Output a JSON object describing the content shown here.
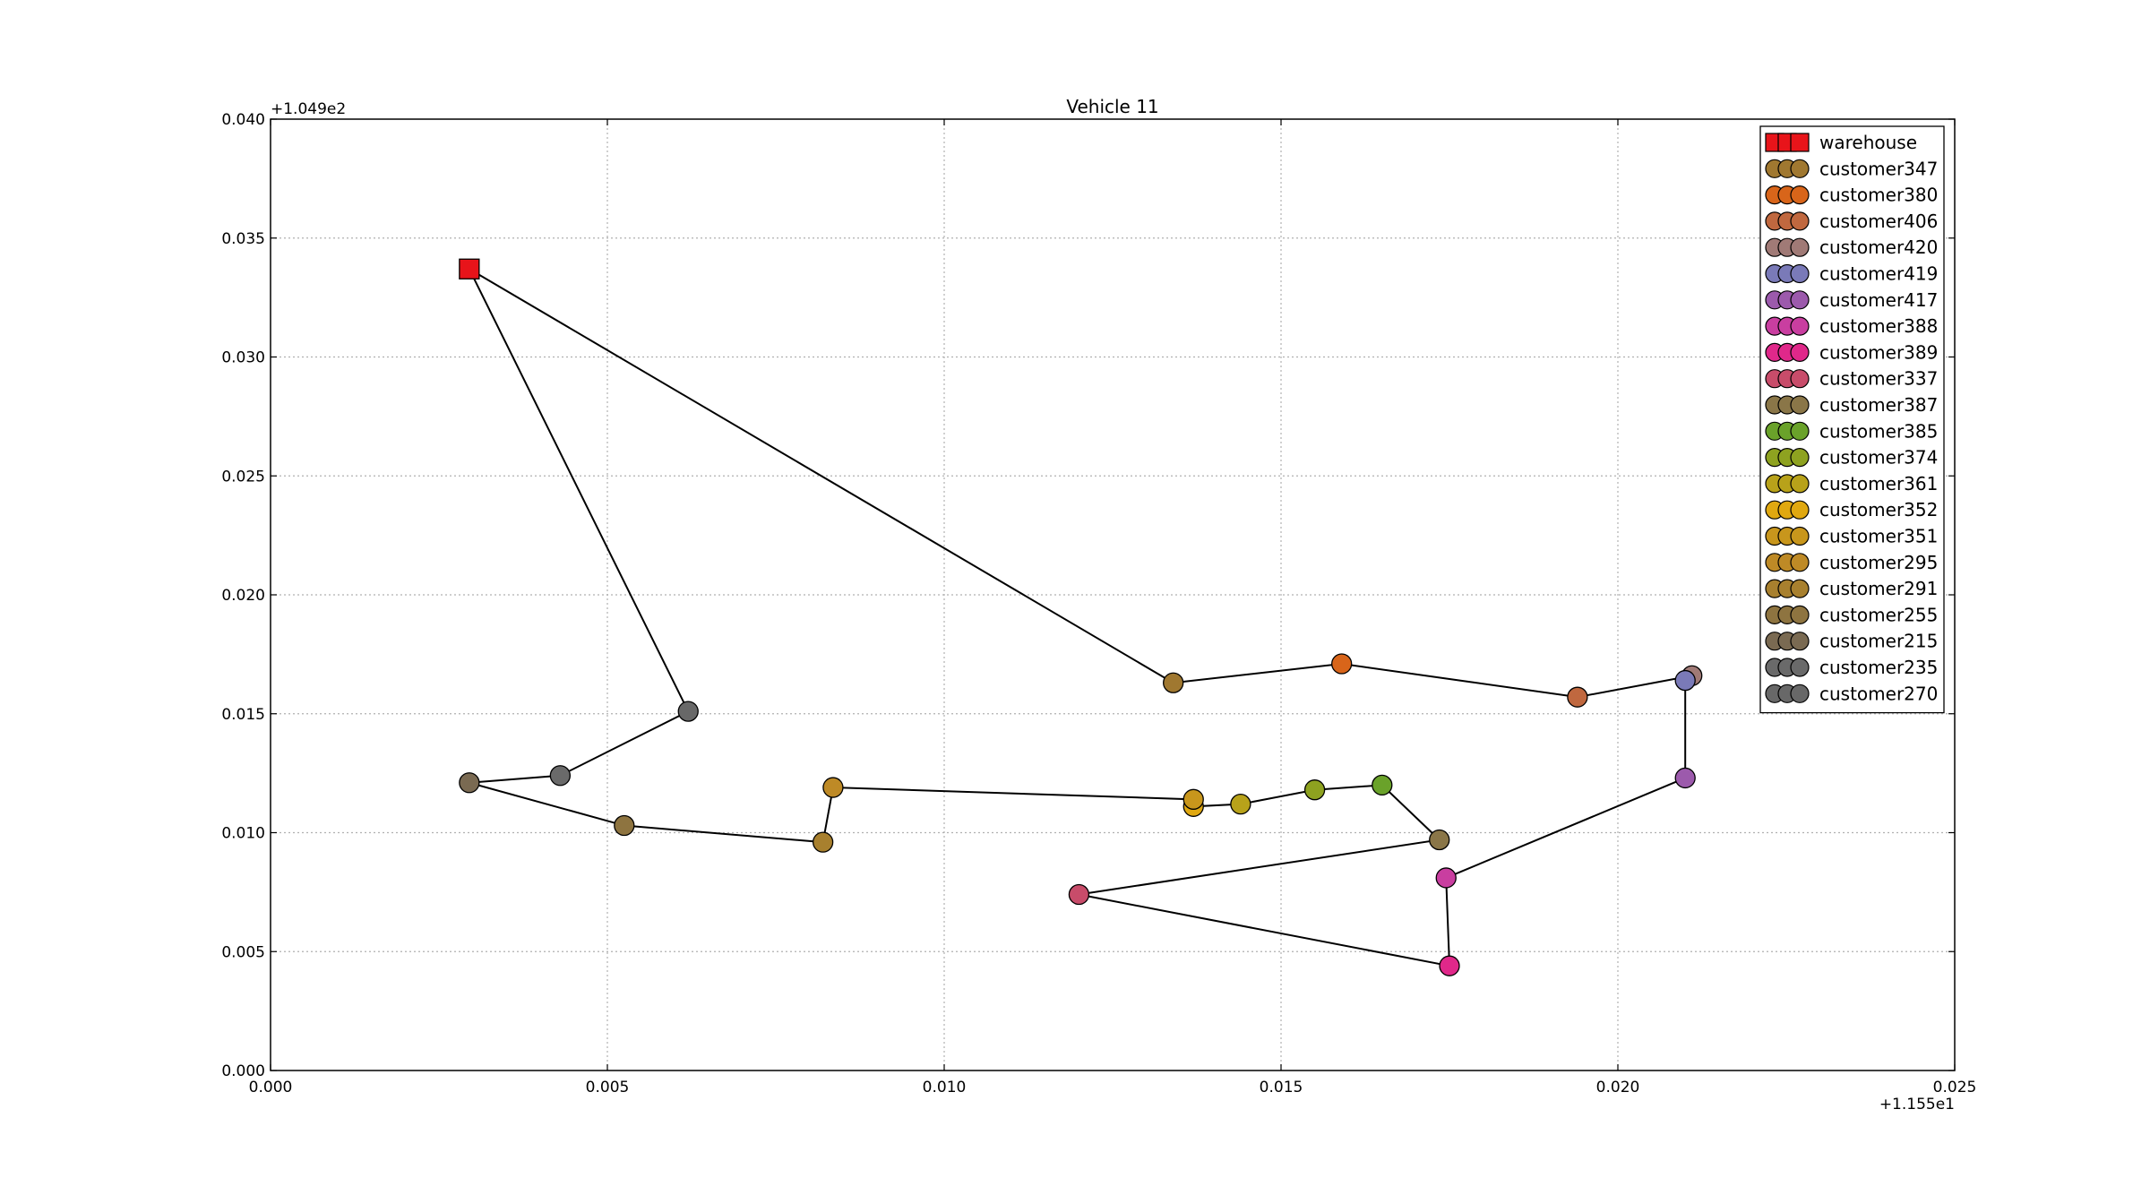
{
  "chart_data": {
    "type": "scatter",
    "title": "Vehicle 11",
    "xlabel": "",
    "ylabel": "",
    "x_offset_label": "+1.155e1",
    "y_offset_label": "+1.049e2",
    "xlim": [
      0.0,
      0.025
    ],
    "ylim": [
      0.0,
      0.04
    ],
    "x_ticks": [
      "0.000",
      "0.005",
      "0.010",
      "0.015",
      "0.020",
      "0.025"
    ],
    "y_ticks": [
      "0.000",
      "0.005",
      "0.010",
      "0.015",
      "0.020",
      "0.025",
      "0.030",
      "0.035",
      "0.040"
    ],
    "grid": true,
    "legend_position": "top-right",
    "warehouse": {
      "name": "warehouse",
      "x": 0.00295,
      "y": 0.0337,
      "color": "#e8141a"
    },
    "route_order": [
      "warehouse",
      "customer347",
      "customer380",
      "customer406",
      "customer420",
      "customer419",
      "customer417",
      "customer388",
      "customer389",
      "customer337",
      "customer387",
      "customer385",
      "customer374",
      "customer361",
      "customer352",
      "customer351",
      "customer295",
      "customer291",
      "customer255",
      "customer215",
      "customer235",
      "customer270",
      "warehouse"
    ],
    "series": [
      {
        "name": "customer347",
        "x": 0.0134,
        "y": 0.0163,
        "color": "#a07830"
      },
      {
        "name": "customer380",
        "x": 0.0159,
        "y": 0.0171,
        "color": "#d8651a"
      },
      {
        "name": "customer406",
        "x": 0.0194,
        "y": 0.0157,
        "color": "#c0683f"
      },
      {
        "name": "customer420",
        "x": 0.0211,
        "y": 0.0166,
        "color": "#a07a76"
      },
      {
        "name": "customer419",
        "x": 0.021,
        "y": 0.0164,
        "color": "#7a7ab8"
      },
      {
        "name": "customer417",
        "x": 0.021,
        "y": 0.0123,
        "color": "#9c5aac"
      },
      {
        "name": "customer388",
        "x": 0.01745,
        "y": 0.0081,
        "color": "#c93ea0"
      },
      {
        "name": "customer389",
        "x": 0.0175,
        "y": 0.0044,
        "color": "#e0288a"
      },
      {
        "name": "customer337",
        "x": 0.012,
        "y": 0.0074,
        "color": "#c84c6a"
      },
      {
        "name": "customer387",
        "x": 0.01735,
        "y": 0.0097,
        "color": "#8a7648"
      },
      {
        "name": "customer385",
        "x": 0.0165,
        "y": 0.012,
        "color": "#6aa22a"
      },
      {
        "name": "customer374",
        "x": 0.0155,
        "y": 0.0118,
        "color": "#8ea220"
      },
      {
        "name": "customer361",
        "x": 0.0144,
        "y": 0.0112,
        "color": "#b8a21a"
      },
      {
        "name": "customer352",
        "x": 0.0137,
        "y": 0.0111,
        "color": "#e0a810"
      },
      {
        "name": "customer351",
        "x": 0.0137,
        "y": 0.0114,
        "color": "#c8961c"
      },
      {
        "name": "customer295",
        "x": 0.00835,
        "y": 0.0119,
        "color": "#be8a26"
      },
      {
        "name": "customer291",
        "x": 0.0082,
        "y": 0.0096,
        "color": "#a8802e"
      },
      {
        "name": "customer255",
        "x": 0.00525,
        "y": 0.0103,
        "color": "#8e7440"
      },
      {
        "name": "customer215",
        "x": 0.00295,
        "y": 0.0121,
        "color": "#7a6a52"
      },
      {
        "name": "customer235",
        "x": 0.0043,
        "y": 0.0124,
        "color": "#6a6a6a"
      },
      {
        "name": "customer270",
        "x": 0.0062,
        "y": 0.0151,
        "color": "#686868"
      }
    ]
  }
}
